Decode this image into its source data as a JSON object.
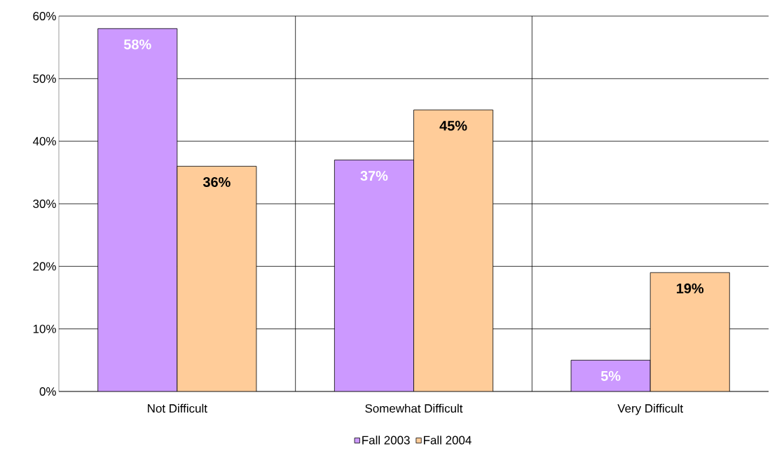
{
  "chart_data": {
    "type": "bar",
    "categories": [
      "Not Difficult",
      "Somewhat Difficult",
      "Very Difficult"
    ],
    "series": [
      {
        "name": "Fall 2003",
        "color": "#cc99ff",
        "values": [
          58,
          37,
          5
        ],
        "value_labels": [
          "58%",
          "37%",
          "5%"
        ]
      },
      {
        "name": "Fall 2004",
        "color": "#ffcc99",
        "values": [
          36,
          45,
          19
        ],
        "value_labels": [
          "36%",
          "45%",
          "19%"
        ]
      }
    ],
    "ylim": [
      0,
      60
    ],
    "yticks": [
      {
        "value": 0,
        "label": "0%"
      },
      {
        "value": 10,
        "label": "10%"
      },
      {
        "value": 20,
        "label": "20%"
      },
      {
        "value": 30,
        "label": "30%"
      },
      {
        "value": 40,
        "label": "40%"
      },
      {
        "value": 50,
        "label": "50%"
      },
      {
        "value": 60,
        "label": "60%"
      }
    ],
    "grid": true,
    "legend": "bottom"
  }
}
